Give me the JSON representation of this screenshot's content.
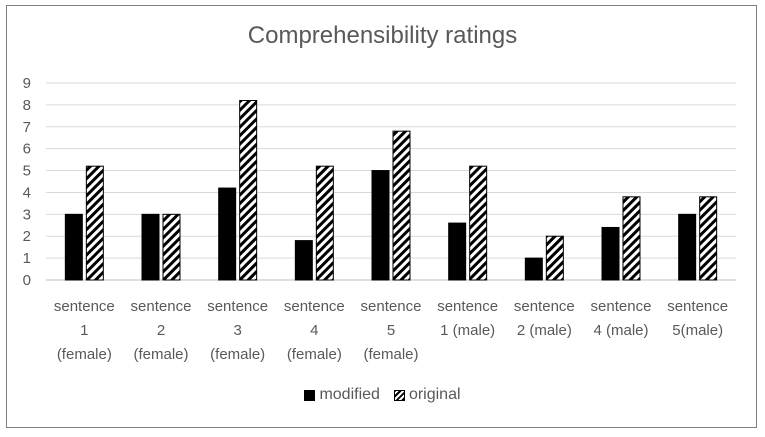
{
  "chart_data": {
    "type": "bar",
    "title": "Comprehensibility ratings",
    "categories": [
      [
        "sentence",
        "1",
        "(female)"
      ],
      [
        "sentence",
        "2",
        "(female)"
      ],
      [
        "sentence",
        "3",
        "(female)"
      ],
      [
        "sentence",
        "4",
        "(female)"
      ],
      [
        "sentence",
        "5",
        "(female)"
      ],
      [
        "sentence",
        "1 (male)"
      ],
      [
        "sentence",
        "2 (male)"
      ],
      [
        "sentence",
        "4 (male)"
      ],
      [
        "sentence",
        "5(male)"
      ]
    ],
    "series": [
      {
        "name": "modified",
        "values": [
          3,
          3,
          4.2,
          1.8,
          5,
          2.6,
          1,
          2.4,
          3
        ],
        "fill": "solid",
        "color": "#000000"
      },
      {
        "name": "original",
        "values": [
          5.2,
          3,
          8.2,
          5.2,
          6.8,
          5.2,
          2,
          3.8,
          3.8
        ],
        "fill": "hatch",
        "color": "#000000"
      }
    ],
    "ylim": [
      0,
      9
    ],
    "yticks": [
      0,
      1,
      2,
      3,
      4,
      5,
      6,
      7,
      8,
      9
    ],
    "grid": true,
    "legend": "bottom",
    "colors": {
      "text": "#595959",
      "grid": "#d9d9d9",
      "border": "#7f7f7f"
    }
  }
}
